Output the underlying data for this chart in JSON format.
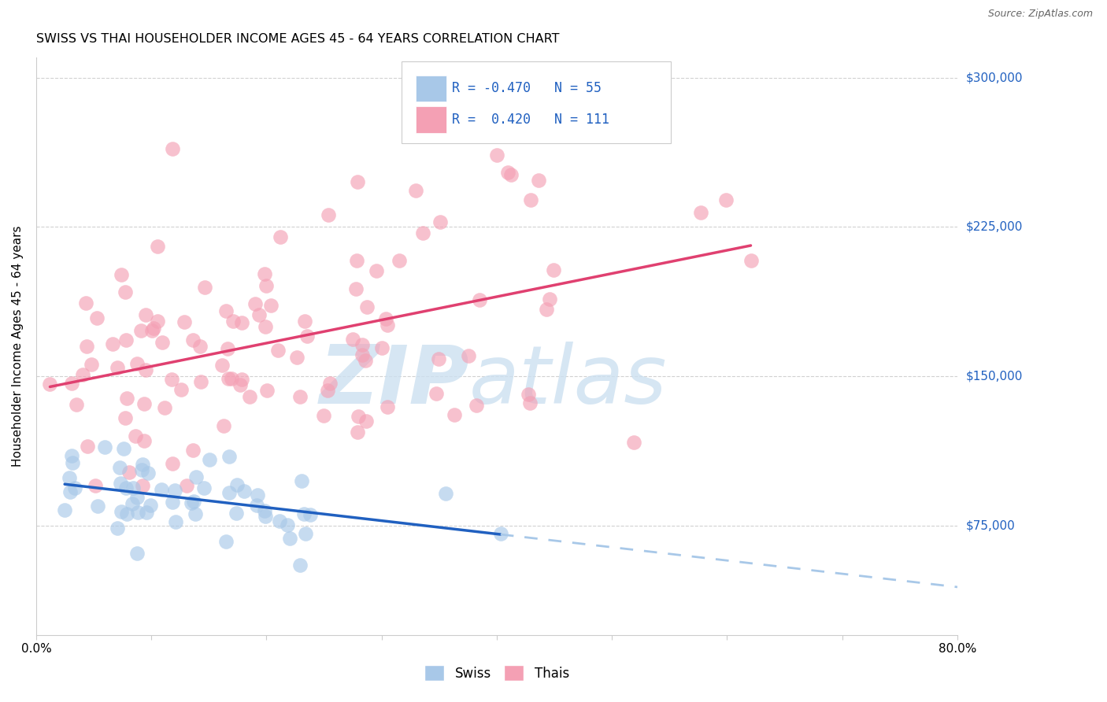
{
  "title": "SWISS VS THAI HOUSEHOLDER INCOME AGES 45 - 64 YEARS CORRELATION CHART",
  "source": "Source: ZipAtlas.com",
  "ylabel": "Householder Income Ages 45 - 64 years",
  "xlim": [
    0.0,
    0.8
  ],
  "ylim": [
    20000,
    310000
  ],
  "yticks": [
    75000,
    150000,
    225000,
    300000
  ],
  "ytick_labels": [
    "$75,000",
    "$150,000",
    "$225,000",
    "$300,000"
  ],
  "xtick_labels": [
    "0.0%",
    "",
    "",
    "",
    "",
    "",
    "",
    "",
    "80.0%"
  ],
  "swiss_color": "#A8C8E8",
  "thai_color": "#F4A0B4",
  "swiss_line_color": "#2060C0",
  "thai_line_color": "#E04070",
  "swiss_R": -0.47,
  "swiss_N": 55,
  "thai_R": 0.42,
  "thai_N": 111,
  "legend_text_color": "#2060C0",
  "background_color": "#ffffff",
  "grid_color": "#cccccc",
  "watermark_color": "#cce0f0"
}
